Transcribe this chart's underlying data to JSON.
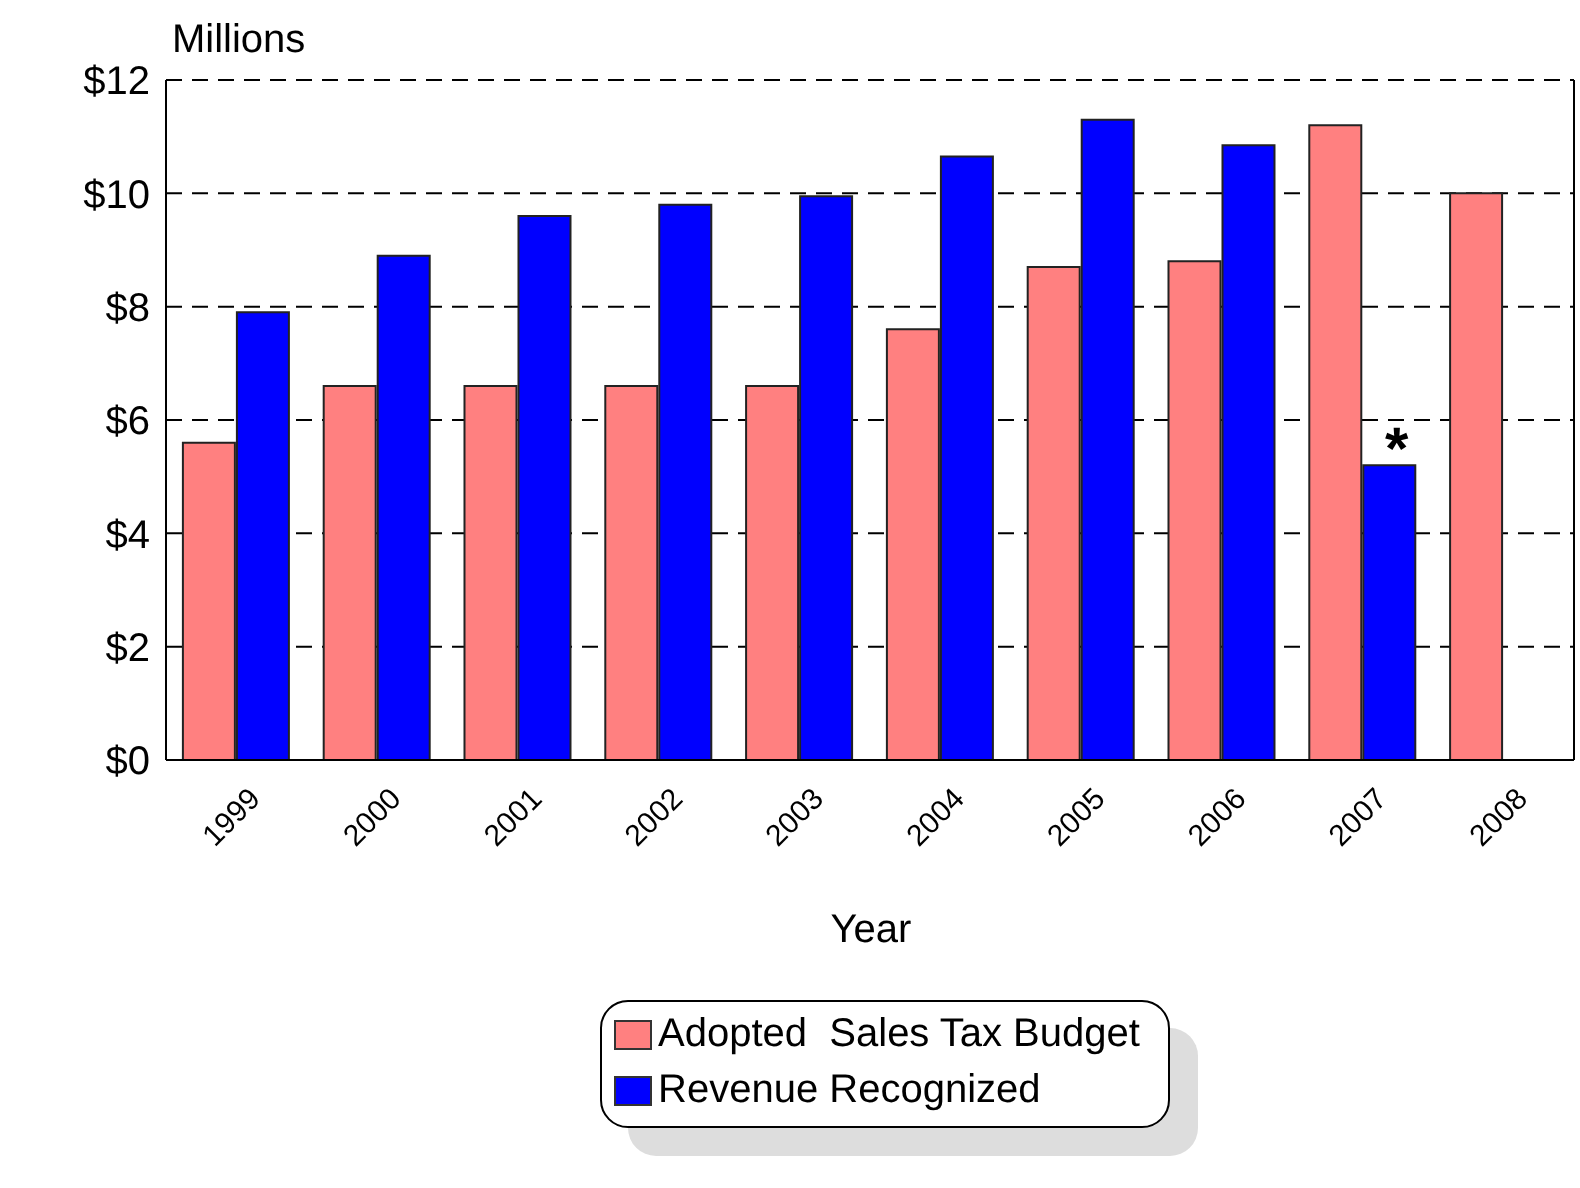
{
  "chart_data": {
    "type": "bar",
    "ylabel": "Millions",
    "xlabel": "Year",
    "categories": [
      "1999",
      "2000",
      "2001",
      "2002",
      "2003",
      "2004",
      "2005",
      "2006",
      "2007",
      "2008"
    ],
    "series": [
      {
        "name": "Adopted  Sales Tax Budget",
        "color": "#ff8080",
        "values": [
          5.6,
          6.6,
          6.6,
          6.6,
          6.6,
          7.6,
          8.7,
          8.8,
          11.2,
          10.0
        ]
      },
      {
        "name": "Revenue Recognized",
        "color": "#0000ff",
        "values": [
          7.9,
          8.9,
          9.6,
          9.8,
          9.95,
          10.65,
          11.3,
          10.85,
          5.2,
          null
        ]
      }
    ],
    "ylim": [
      0,
      12
    ],
    "yticks": [
      {
        "value": 0,
        "label": "$0"
      },
      {
        "value": 2,
        "label": "$2"
      },
      {
        "value": 4,
        "label": "$4"
      },
      {
        "value": 6,
        "label": "$6"
      },
      {
        "value": 8,
        "label": "$8"
      },
      {
        "value": 10,
        "label": "$10"
      },
      {
        "value": 12,
        "label": "$12"
      }
    ],
    "grid": "y",
    "legend": "bottom",
    "annotations": [
      {
        "text": "*",
        "x": "2007",
        "y": 5.2
      }
    ]
  }
}
